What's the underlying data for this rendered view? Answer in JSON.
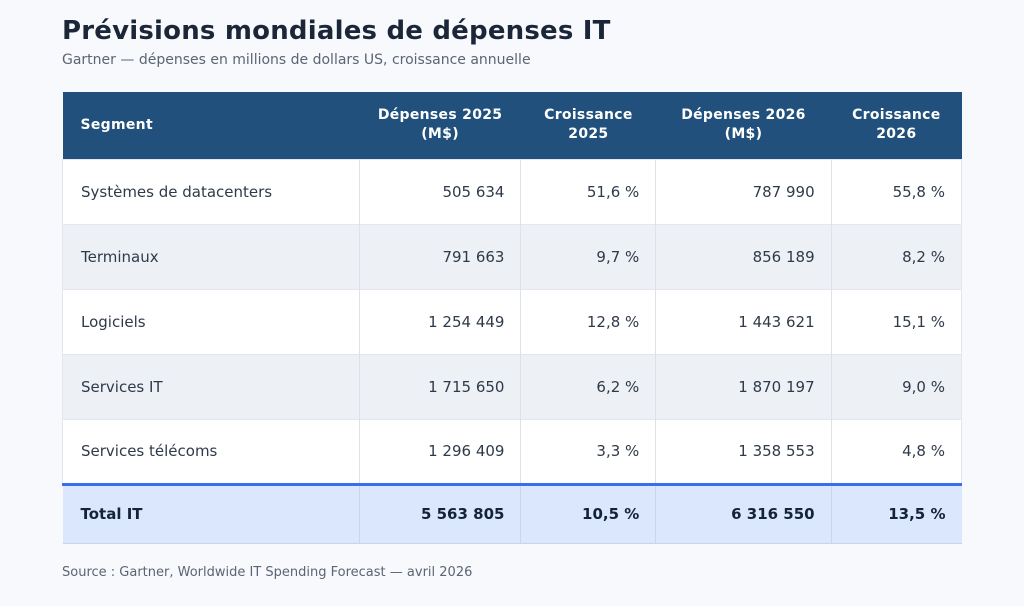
{
  "page": {
    "title": "Prévisions mondiales de dépenses IT",
    "subtitle": "Gartner — dépenses en millions de dollars US, croissance annuelle",
    "source": "Source : Gartner, Worldwide IT Spending Forecast — avril 2026"
  },
  "colors": {
    "page_bg": "#f7f9fc",
    "header_bg": "#20507b",
    "header_text": "#ffffff",
    "stripe_bg": "#edf0f5",
    "total_bg": "#dbe7fc",
    "total_top_border": "#3b6df2",
    "title_text": "#1b2739",
    "body_text": "#2f3a49"
  },
  "table": {
    "headers": [
      {
        "line1": "Segment",
        "line2": ""
      },
      {
        "line1": "Dépenses 2025",
        "line2": "(M$)"
      },
      {
        "line1": "Croissance",
        "line2": "2025"
      },
      {
        "line1": "Dépenses 2026",
        "line2": "(M$)"
      },
      {
        "line1": "Croissance",
        "line2": "2026"
      }
    ],
    "rows": [
      {
        "segment": "Systèmes de datacenters",
        "dep2025": "505 634",
        "cr2025": "51,6 %",
        "dep2026": "787 990",
        "cr2026": "55,8 %"
      },
      {
        "segment": "Terminaux",
        "dep2025": "791 663",
        "cr2025": "9,7 %",
        "dep2026": "856 189",
        "cr2026": "8,2 %"
      },
      {
        "segment": "Logiciels",
        "dep2025": "1 254 449",
        "cr2025": "12,8 %",
        "dep2026": "1 443 621",
        "cr2026": "15,1 %"
      },
      {
        "segment": "Services IT",
        "dep2025": "1 715 650",
        "cr2025": "6,2 %",
        "dep2026": "1 870 197",
        "cr2026": "9,0 %"
      },
      {
        "segment": "Services télécoms",
        "dep2025": "1 296 409",
        "cr2025": "3,3 %",
        "dep2026": "1 358 553",
        "cr2026": "4,8 %"
      }
    ],
    "total": {
      "segment": "Total IT",
      "dep2025": "5 563 805",
      "cr2025": "10,5 %",
      "dep2026": "6 316 550",
      "cr2026": "13,5 %"
    }
  },
  "chart_data": {
    "type": "table",
    "title": "Prévisions mondiales de dépenses IT",
    "subtitle": "Gartner — dépenses en millions de dollars US, croissance annuelle",
    "columns": [
      "Segment",
      "Dépenses 2025 (M$)",
      "Croissance 2025",
      "Dépenses 2026 (M$)",
      "Croissance 2026"
    ],
    "rows": [
      [
        "Systèmes de datacenters",
        505634,
        "51,6 %",
        787990,
        "55,8 %"
      ],
      [
        "Terminaux",
        791663,
        "9,7 %",
        856189,
        "8,2 %"
      ],
      [
        "Logiciels",
        1254449,
        "12,8 %",
        1443621,
        "15,1 %"
      ],
      [
        "Services IT",
        1715650,
        "6,2 %",
        1870197,
        "9,0 %"
      ],
      [
        "Services télécoms",
        1296409,
        "3,3 %",
        1358553,
        "4,8 %"
      ]
    ],
    "total_row": [
      "Total IT",
      5563805,
      "10,5 %",
      6316550,
      "13,5 %"
    ],
    "source": "Source : Gartner, Worldwide IT Spending Forecast — avril 2026"
  }
}
